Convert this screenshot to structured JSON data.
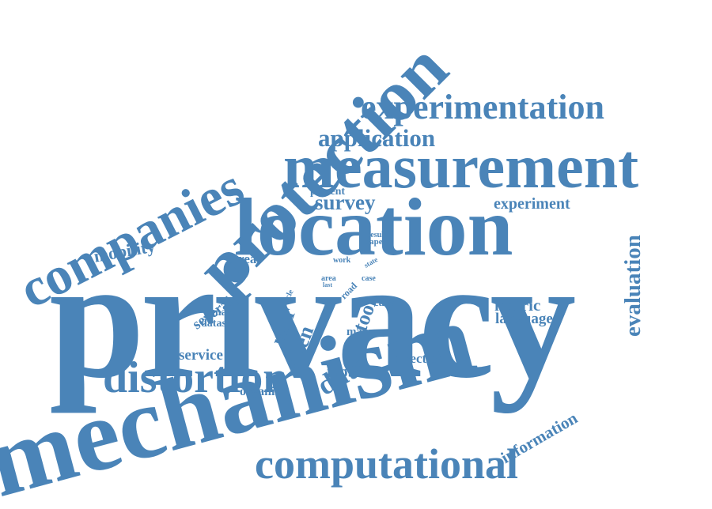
{
  "cloud": {
    "word_color": "#4a84b8",
    "words": {
      "privacy": "privacy",
      "mechanism": "mechanism",
      "protection": "protection",
      "location": "location",
      "measurement": "measurement",
      "companies": "companies",
      "experimentation": "experimentation",
      "computational": "computational",
      "distortion": "distortion",
      "application": "application",
      "survey": "survey",
      "present": "present",
      "experiment": "experiment",
      "evaluation": "evaluation",
      "mobility": "mobility",
      "threat": "threat",
      "result": "result",
      "paper": "paper",
      "work": "work",
      "state": "state",
      "case": "case",
      "area": "area",
      "last": "last",
      "road": "road",
      "article": "article",
      "several": "several",
      "make": "make",
      "dataset": "dataset",
      "user": "user",
      "tool": "tool",
      "easy": "easy",
      "metric": "metric",
      "language": "language",
      "many": "many",
      "open": "open",
      "data": "data",
      "service": "service",
      "direction": "direction",
      "mobile": "mobile",
      "organise": "organise",
      "information": "information"
    }
  }
}
